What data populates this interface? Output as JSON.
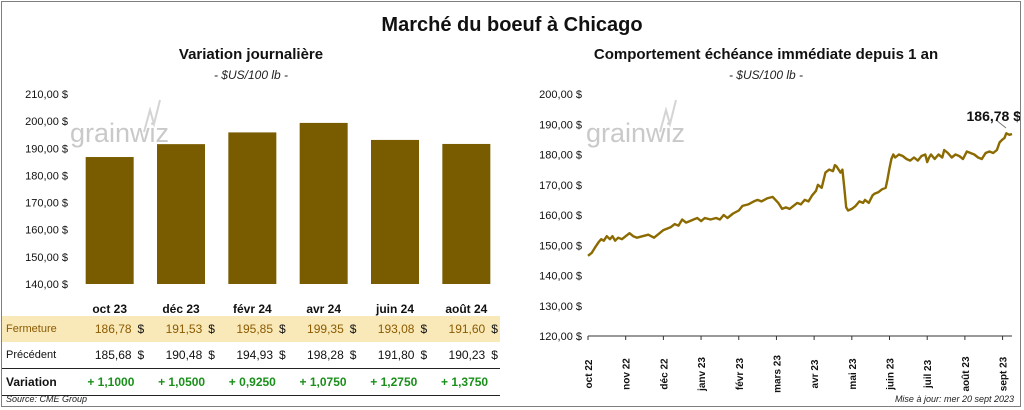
{
  "title": "Marché du boeuf à Chicago",
  "left_title": "Variation journalière",
  "left_subtitle": "- $US/100 lb -",
  "right_title": "Comportement échéance immédiate depuis 1 an",
  "right_subtitle": "- $US/100 lb -",
  "watermark": "grainwiz",
  "source": "Source: CME Group",
  "updated": "Mise à jour: mer 20 sept 2023",
  "colors": {
    "bar": "#7a5c00",
    "line": "#8b6a00",
    "closing_row": "#f9e9b9",
    "positive": "#1a8f1a"
  },
  "table": {
    "currency": "$",
    "rows": [
      {
        "label": "Fermeture",
        "values": [
          "186,78",
          "191,53",
          "195,85",
          "199,35",
          "193,08",
          "191,60"
        ]
      },
      {
        "label": "Précédent",
        "values": [
          "185,68",
          "190,48",
          "194,93",
          "198,28",
          "191,80",
          "190,23"
        ]
      },
      {
        "label": "Variation",
        "values": [
          "+ 1,1000",
          "+ 1,0500",
          "+ 0,9250",
          "+ 1,0750",
          "+ 1,2750",
          "+ 1,3750"
        ]
      }
    ]
  },
  "chart_data": [
    {
      "type": "bar",
      "categories": [
        "oct 23",
        "déc 23",
        "févr 24",
        "avr 24",
        "juin 24",
        "août 24"
      ],
      "values": [
        186.78,
        191.53,
        195.85,
        199.35,
        193.08,
        191.6
      ],
      "ylim": [
        140,
        210
      ],
      "yticks": [
        "140,00 $",
        "150,00 $",
        "160,00 $",
        "170,00 $",
        "180,00 $",
        "190,00 $",
        "200,00 $",
        "210,00 $"
      ],
      "grid": false
    },
    {
      "type": "line",
      "x_labels": [
        "oct 22",
        "nov 22",
        "déc 22",
        "janv 23",
        "févr 23",
        "mars 23",
        "avr 23",
        "mai 23",
        "juin 23",
        "juil 23",
        "août 23",
        "sept 23"
      ],
      "ylim": [
        120,
        200
      ],
      "yticks": [
        "120,00 $",
        "130,00 $",
        "140,00 $",
        "150,00 $",
        "160,00 $",
        "170,00 $",
        "180,00 $",
        "190,00 $",
        "200,00 $"
      ],
      "last_value_label": "186,78 $",
      "grid": false,
      "series": [
        {
          "values": [
            [
              0,
              146.5
            ],
            [
              0.1,
              147.5
            ],
            [
              0.2,
              149.5
            ],
            [
              0.28,
              151
            ],
            [
              0.35,
              152
            ],
            [
              0.42,
              151.5
            ],
            [
              0.5,
              153
            ],
            [
              0.58,
              152
            ],
            [
              0.65,
              153
            ],
            [
              0.72,
              151.5
            ],
            [
              0.8,
              152.5
            ],
            [
              0.9,
              152
            ],
            [
              1.0,
              153
            ],
            [
              1.1,
              154
            ],
            [
              1.2,
              153
            ],
            [
              1.3,
              152.5
            ],
            [
              1.45,
              153
            ],
            [
              1.6,
              153.5
            ],
            [
              1.75,
              152.5
            ],
            [
              1.9,
              154
            ],
            [
              2.0,
              155
            ],
            [
              2.1,
              155.5
            ],
            [
              2.2,
              156
            ],
            [
              2.3,
              157
            ],
            [
              2.4,
              156.5
            ],
            [
              2.5,
              158.5
            ],
            [
              2.6,
              157.5
            ],
            [
              2.7,
              158
            ],
            [
              2.8,
              158.5
            ],
            [
              2.9,
              159
            ],
            [
              3.0,
              158
            ],
            [
              3.1,
              159
            ],
            [
              3.25,
              158.5
            ],
            [
              3.4,
              159
            ],
            [
              3.5,
              158.5
            ],
            [
              3.6,
              160
            ],
            [
              3.7,
              159
            ],
            [
              3.85,
              160.5
            ],
            [
              4.0,
              161.5
            ],
            [
              4.1,
              163
            ],
            [
              4.25,
              163.5
            ],
            [
              4.4,
              164.5
            ],
            [
              4.5,
              165
            ],
            [
              4.6,
              164.5
            ],
            [
              4.75,
              165.5
            ],
            [
              4.9,
              166
            ],
            [
              5.05,
              164
            ],
            [
              5.15,
              162
            ],
            [
              5.25,
              162.5
            ],
            [
              5.35,
              162
            ],
            [
              5.45,
              163
            ],
            [
              5.55,
              164
            ],
            [
              5.65,
              163.5
            ],
            [
              5.75,
              165
            ],
            [
              5.85,
              164.5
            ],
            [
              5.95,
              166.5
            ],
            [
              6.05,
              168
            ],
            [
              6.1,
              170
            ],
            [
              6.2,
              169
            ],
            [
              6.3,
              174
            ],
            [
              6.4,
              175
            ],
            [
              6.5,
              174.5
            ],
            [
              6.55,
              176.5
            ],
            [
              6.6,
              176
            ],
            [
              6.7,
              174
            ],
            [
              6.75,
              175
            ],
            [
              6.8,
              169
            ],
            [
              6.85,
              162.5
            ],
            [
              6.9,
              161.5
            ],
            [
              7.0,
              162
            ],
            [
              7.1,
              163
            ],
            [
              7.2,
              164.5
            ],
            [
              7.3,
              164
            ],
            [
              7.35,
              165
            ],
            [
              7.45,
              164
            ],
            [
              7.55,
              166.5
            ],
            [
              7.6,
              167
            ],
            [
              7.7,
              167.5
            ],
            [
              7.8,
              168.5
            ],
            [
              7.9,
              169
            ],
            [
              7.95,
              172
            ],
            [
              8.0,
              175.5
            ],
            [
              8.05,
              178.5
            ],
            [
              8.1,
              180
            ],
            [
              8.15,
              179
            ],
            [
              8.25,
              180
            ],
            [
              8.35,
              179.5
            ],
            [
              8.45,
              178.5
            ],
            [
              8.55,
              178
            ],
            [
              8.65,
              179
            ],
            [
              8.75,
              178
            ],
            [
              8.85,
              179.5
            ],
            [
              8.95,
              180
            ],
            [
              9.0,
              177.5
            ],
            [
              9.05,
              179
            ],
            [
              9.1,
              180
            ],
            [
              9.2,
              178.5
            ],
            [
              9.3,
              180
            ],
            [
              9.4,
              179
            ],
            [
              9.45,
              181.5
            ],
            [
              9.55,
              180.5
            ],
            [
              9.65,
              179
            ],
            [
              9.75,
              180
            ],
            [
              9.85,
              179.5
            ],
            [
              9.95,
              178.5
            ],
            [
              10.05,
              181
            ],
            [
              10.15,
              180.5
            ],
            [
              10.25,
              180
            ],
            [
              10.35,
              179
            ],
            [
              10.45,
              178.5
            ],
            [
              10.55,
              180.5
            ],
            [
              10.65,
              181
            ],
            [
              10.75,
              180.5
            ],
            [
              10.85,
              181.5
            ],
            [
              10.92,
              184
            ],
            [
              11.0,
              185
            ],
            [
              11.05,
              185.5
            ],
            [
              11.1,
              187
            ],
            [
              11.18,
              186.5
            ],
            [
              11.25,
              186.78
            ]
          ]
        }
      ]
    }
  ]
}
